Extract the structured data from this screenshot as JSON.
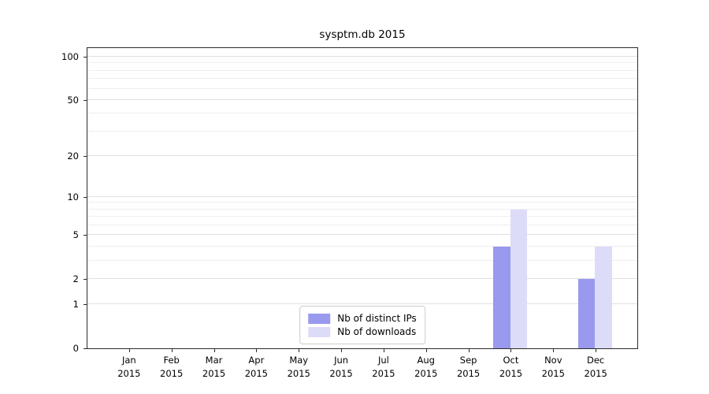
{
  "chart_data": {
    "type": "bar",
    "title": "sysptm.db 2015",
    "categories": [
      "Jan",
      "Feb",
      "Mar",
      "Apr",
      "May",
      "Jun",
      "Jul",
      "Aug",
      "Sep",
      "Oct",
      "Nov",
      "Dec"
    ],
    "year_label": "2015",
    "series": [
      {
        "name": "Nb of distinct IPs",
        "color": "#9999ee",
        "values": [
          0,
          0,
          0,
          0,
          0,
          0,
          0,
          0,
          0,
          4,
          0,
          2
        ]
      },
      {
        "name": "Nb of downloads",
        "color": "#dcdcf8",
        "values": [
          0,
          0,
          0,
          0,
          0,
          0,
          0,
          0,
          0,
          8,
          0,
          4
        ]
      }
    ],
    "yticks": [
      0,
      1,
      2,
      5,
      10,
      20,
      50,
      100
    ],
    "minor_gridlines": [
      3,
      4,
      6,
      7,
      8,
      9,
      30,
      40,
      60,
      70,
      80,
      90
    ],
    "scale": "log1p",
    "ylim": [
      0,
      115
    ],
    "xlabel": "",
    "ylabel": "",
    "grid": true,
    "legend_position": "lower center"
  }
}
